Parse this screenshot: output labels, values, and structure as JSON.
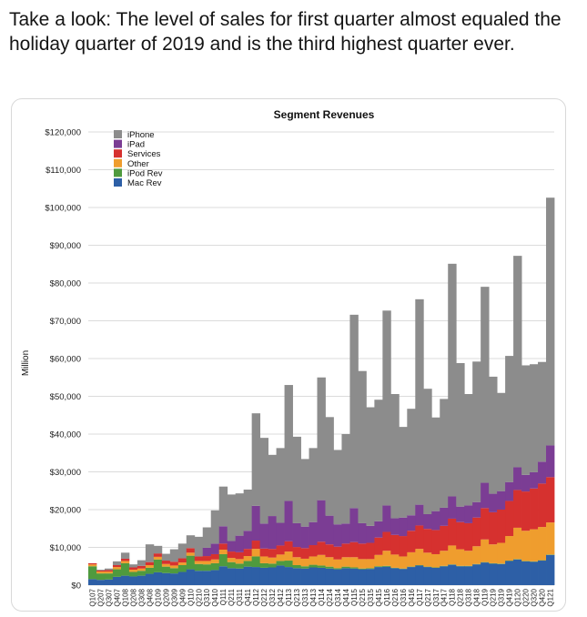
{
  "tweet": {
    "text": "Take a look: The level of sales for first quarter almost equaled the holiday quarter of 2019 and is the third highest quarter ever."
  },
  "chart_data": {
    "type": "bar",
    "stacked": true,
    "title": "Segment Revenues",
    "ylabel": "Million",
    "ylim": [
      0,
      120000
    ],
    "yticks": [
      0,
      10000,
      20000,
      30000,
      40000,
      50000,
      60000,
      70000,
      80000,
      90000,
      100000,
      110000,
      120000
    ],
    "ytick_labels": [
      "$0",
      "$10,000",
      "$20,000",
      "$30,000",
      "$40,000",
      "$50,000",
      "$60,000",
      "$70,000",
      "$80,000",
      "$90,000",
      "$100,000",
      "$110,000",
      "$120,000"
    ],
    "grid": true,
    "legend_position": "top-left",
    "categories": [
      "Q107",
      "Q207",
      "Q307",
      "Q407",
      "Q108",
      "Q208",
      "Q308",
      "Q408",
      "Q109",
      "Q209",
      "Q309",
      "Q409",
      "Q110",
      "Q210",
      "Q310",
      "Q410",
      "Q111",
      "Q211",
      "Q311",
      "Q411",
      "Q112",
      "Q212",
      "Q312",
      "Q412",
      "Q113",
      "Q213",
      "Q313",
      "Q413",
      "Q114",
      "Q214",
      "Q314",
      "Q414",
      "Q115",
      "Q215",
      "Q315",
      "Q415",
      "Q116",
      "Q216",
      "Q316",
      "Q416",
      "Q117",
      "Q217",
      "Q317",
      "Q417",
      "Q118",
      "Q218",
      "Q318",
      "Q418",
      "Q119",
      "Q219",
      "Q319",
      "Q419",
      "Q120",
      "Q220",
      "Q320",
      "Q420",
      "Q121"
    ],
    "series": [
      {
        "name": "Mac Rev",
        "color": "#2d5fa6",
        "values": [
          1600,
          1400,
          1500,
          2200,
          2500,
          2300,
          2500,
          3000,
          3400,
          3200,
          3100,
          3500,
          4200,
          3800,
          3800,
          4000,
          5000,
          4500,
          4400,
          4900,
          4800,
          4600,
          4700,
          5200,
          4800,
          4500,
          4400,
          4700,
          4600,
          4400,
          4200,
          4500,
          4400,
          4200,
          4300,
          4800,
          4900,
          4500,
          4300,
          4800,
          5200,
          4800,
          4600,
          5000,
          5400,
          5000,
          5000,
          5500,
          6000,
          5700,
          5600,
          6400,
          6800,
          6300,
          6200,
          6500,
          8000
        ]
      },
      {
        "name": "iPod Rev",
        "color": "#4f9a3e",
        "values": [
          3400,
          1700,
          1600,
          2000,
          3300,
          1200,
          1300,
          1600,
          3400,
          1700,
          1400,
          1800,
          3600,
          1800,
          1700,
          1800,
          3200,
          1600,
          1300,
          1500,
          2800,
          1200,
          1000,
          1200,
          1700,
          800,
          600,
          700,
          600,
          500,
          300,
          400,
          300,
          200,
          200,
          200,
          200,
          100,
          100,
          100,
          100,
          100,
          100,
          100,
          100,
          100,
          100,
          100,
          100,
          100,
          100,
          100,
          100,
          100,
          100,
          100,
          100
        ]
      },
      {
        "name": "Other",
        "color": "#ef9d2e",
        "values": [
          500,
          500,
          500,
          600,
          600,
          600,
          600,
          700,
          700,
          700,
          700,
          700,
          800,
          800,
          900,
          1000,
          1200,
          1100,
          1200,
          1300,
          2000,
          1800,
          1600,
          1700,
          2400,
          2100,
          2000,
          2200,
          2800,
          2500,
          2300,
          2500,
          2700,
          2500,
          2400,
          3000,
          4000,
          3500,
          3200,
          3800,
          4300,
          3700,
          3500,
          4000,
          5000,
          4400,
          4000,
          4700,
          6000,
          5000,
          5500,
          6500,
          8300,
          8000,
          8500,
          8800,
          8500
        ]
      },
      {
        "name": "Services",
        "color": "#d6312f",
        "values": [
          300,
          300,
          400,
          500,
          600,
          600,
          700,
          800,
          900,
          900,
          1000,
          1100,
          1200,
          1200,
          1300,
          1400,
          1600,
          1700,
          1800,
          1900,
          2200,
          2100,
          2300,
          2400,
          2700,
          2700,
          2800,
          3000,
          3500,
          3400,
          3400,
          3600,
          4000,
          4100,
          4300,
          4600,
          5000,
          5200,
          5400,
          5700,
          6200,
          6300,
          6400,
          6600,
          7100,
          7200,
          7300,
          7600,
          8300,
          8500,
          8800,
          9300,
          10000,
          10400,
          10800,
          11500,
          12000
        ]
      },
      {
        "name": "iPad",
        "color": "#7b3d94",
        "values": [
          0,
          0,
          0,
          0,
          0,
          0,
          0,
          0,
          0,
          0,
          0,
          0,
          0,
          0,
          2200,
          2800,
          4600,
          2800,
          4400,
          4800,
          9200,
          6600,
          8700,
          6000,
          10700,
          6300,
          5700,
          6100,
          11000,
          7600,
          5900,
          5300,
          9000,
          5400,
          4500,
          4300,
          7000,
          4400,
          4900,
          4100,
          5500,
          3900,
          5000,
          4800,
          5900,
          4100,
          4700,
          4100,
          6700,
          4900,
          4900,
          5000,
          6000,
          4400,
          4300,
          5800,
          8400
        ]
      },
      {
        "name": "iPhone",
        "color": "#8c8c8c",
        "values": [
          0,
          200,
          400,
          1000,
          1600,
          800,
          1500,
          4700,
          2000,
          1800,
          3300,
          3900,
          3400,
          5200,
          5400,
          8800,
          10500,
          12300,
          11200,
          10900,
          24500,
          22700,
          16200,
          19800,
          30700,
          22900,
          17900,
          19600,
          32500,
          26100,
          19700,
          23700,
          51200,
          40300,
          31400,
          32200,
          51600,
          32900,
          24000,
          28200,
          54400,
          33200,
          24800,
          28800,
          61600,
          38000,
          29500,
          37200,
          51900,
          31000,
          26000,
          33400,
          56000,
          29000,
          28600,
          26400,
          65600
        ]
      }
    ]
  }
}
